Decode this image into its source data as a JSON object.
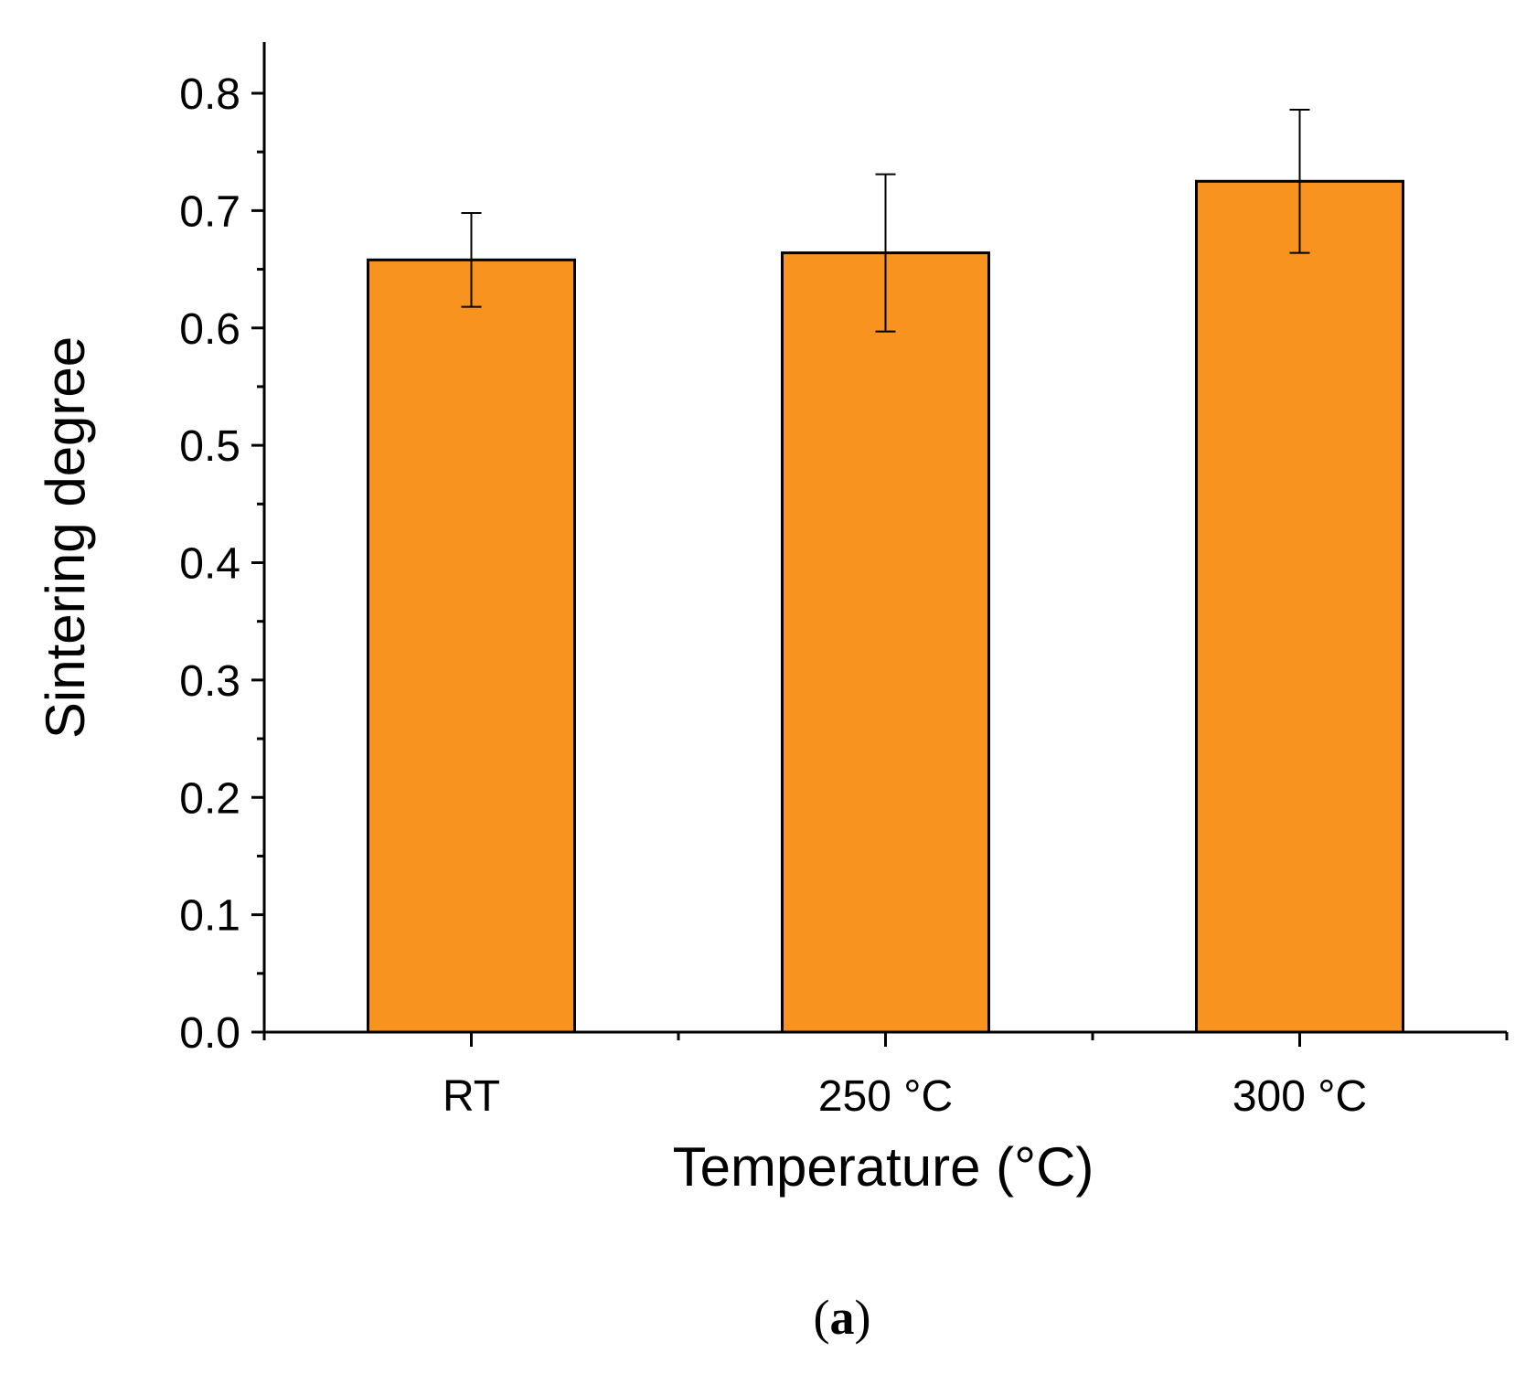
{
  "chart_data": {
    "type": "bar",
    "categories": [
      "RT",
      "250 °C",
      "300 °C"
    ],
    "series": [
      {
        "name": "Sintering degree",
        "values": [
          0.658,
          0.664,
          0.725
        ],
        "errors": [
          0.04,
          0.067,
          0.061
        ]
      }
    ],
    "xlabel": "Temperature (°C)",
    "ylabel": "Sintering degree",
    "ylim": [
      0,
      0.85
    ],
    "yticks": [
      "0.0",
      "0.1",
      "0.2",
      "0.3",
      "0.4",
      "0.5",
      "0.6",
      "0.7",
      "0.8"
    ],
    "ytick_values": [
      0,
      0.1,
      0.2,
      0.3,
      0.4,
      0.5,
      0.6,
      0.7,
      0.8
    ],
    "grid": false,
    "bar_color": "#f7931e",
    "panel_label": {
      "open": "(",
      "letter": "a",
      "close": ")"
    }
  }
}
